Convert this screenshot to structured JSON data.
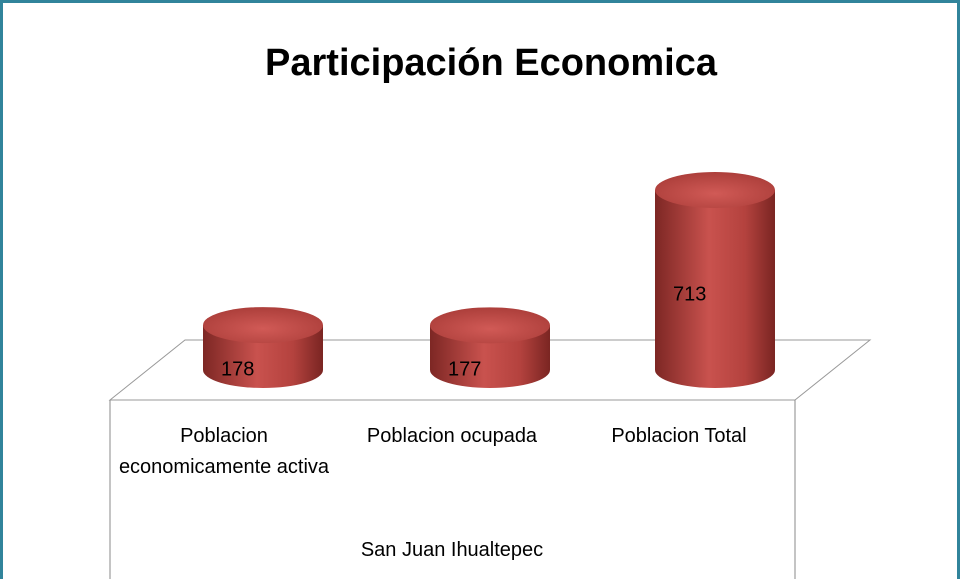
{
  "chart_data": {
    "type": "cylinder",
    "title": "Participación Economica",
    "categories": [
      "Poblacion economicamente activa",
      "Poblacion ocupada",
      "Poblacion Total"
    ],
    "group_label": "San Juan Ihualtepec",
    "values": [
      178,
      177,
      713
    ],
    "color": "#c0504d"
  }
}
